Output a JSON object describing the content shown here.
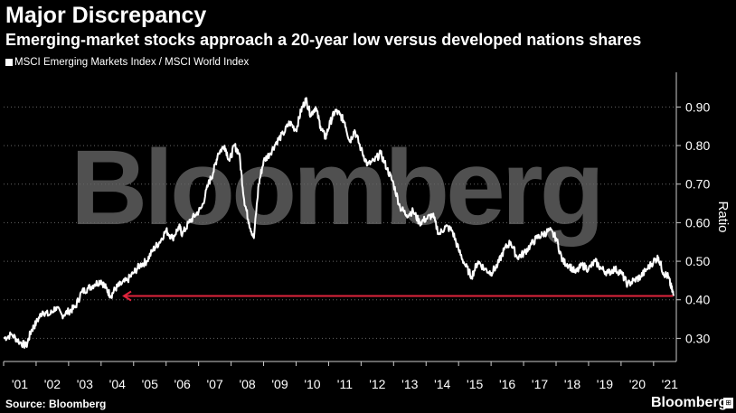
{
  "header": {
    "title": "Major Discrepancy",
    "subtitle": "Emerging-market stocks approach a 20-year low versus developed nations shares"
  },
  "footer": {
    "source": "Source: Bloomberg",
    "brand": "Bloomberg"
  },
  "watermark": "Bloomberg",
  "colors": {
    "background": "#000000",
    "line": "#ffffff",
    "reference_line": "#e0243c",
    "watermark": "#5f5f5f"
  },
  "chart_data": {
    "type": "line",
    "title": "Major Discrepancy",
    "subtitle": "Emerging-market stocks approach a 20-year low versus developed nations shares",
    "ylabel": "Ratio",
    "xlabel": "",
    "ylim": [
      0.24,
      0.99
    ],
    "xlim": [
      2001.0,
      2021.7
    ],
    "yticks": [
      0.3,
      0.4,
      0.5,
      0.6,
      0.7,
      0.8,
      0.9
    ],
    "ytick_labels": [
      "0.30",
      "0.40",
      "0.50",
      "0.60",
      "0.70",
      "0.80",
      "0.90"
    ],
    "xtick_labels": [
      "'01",
      "'02",
      "'03",
      "'04",
      "'05",
      "'06",
      "'07",
      "'08",
      "'09",
      "'10",
      "'11",
      "'12",
      "'13",
      "'14",
      "'15",
      "'16",
      "'17",
      "'18",
      "'19",
      "'20",
      "'21"
    ],
    "grid": "horizontal dotted",
    "legend": "top-left",
    "series": [
      {
        "name": "MSCI Emerging Markets Index / MSCI World Index",
        "x": [
          2001.0,
          2001.25,
          2001.5,
          2001.7,
          2001.85,
          2002.0,
          2002.2,
          2002.4,
          2002.6,
          2002.8,
          2003.0,
          2003.2,
          2003.4,
          2003.6,
          2003.8,
          2004.0,
          2004.15,
          2004.3,
          2004.45,
          2004.6,
          2004.8,
          2005.0,
          2005.2,
          2005.4,
          2005.6,
          2005.8,
          2006.0,
          2006.2,
          2006.4,
          2006.5,
          2006.7,
          2006.9,
          2007.1,
          2007.3,
          2007.45,
          2007.6,
          2007.8,
          2007.95,
          2008.1,
          2008.25,
          2008.4,
          2008.55,
          2008.7,
          2008.85,
          2009.0,
          2009.2,
          2009.4,
          2009.6,
          2009.8,
          2010.0,
          2010.15,
          2010.3,
          2010.45,
          2010.6,
          2010.75,
          2010.9,
          2011.05,
          2011.2,
          2011.35,
          2011.5,
          2011.65,
          2011.8,
          2012.0,
          2012.2,
          2012.4,
          2012.6,
          2012.8,
          2013.0,
          2013.2,
          2013.4,
          2013.6,
          2013.8,
          2014.0,
          2014.2,
          2014.4,
          2014.6,
          2014.8,
          2015.0,
          2015.2,
          2015.4,
          2015.6,
          2015.8,
          2016.0,
          2016.2,
          2016.4,
          2016.6,
          2016.8,
          2017.0,
          2017.2,
          2017.4,
          2017.6,
          2017.8,
          2018.0,
          2018.2,
          2018.4,
          2018.6,
          2018.8,
          2019.0,
          2019.2,
          2019.4,
          2019.6,
          2019.8,
          2020.0,
          2020.2,
          2020.4,
          2020.6,
          2020.8,
          2021.0,
          2021.15,
          2021.3,
          2021.45,
          2021.55,
          2021.62
        ],
        "values": [
          0.3,
          0.31,
          0.29,
          0.28,
          0.32,
          0.34,
          0.37,
          0.36,
          0.38,
          0.36,
          0.37,
          0.38,
          0.42,
          0.43,
          0.44,
          0.45,
          0.43,
          0.41,
          0.43,
          0.44,
          0.45,
          0.47,
          0.49,
          0.5,
          0.53,
          0.55,
          0.58,
          0.56,
          0.59,
          0.57,
          0.6,
          0.62,
          0.64,
          0.7,
          0.73,
          0.78,
          0.8,
          0.76,
          0.8,
          0.78,
          0.66,
          0.6,
          0.56,
          0.7,
          0.76,
          0.78,
          0.81,
          0.83,
          0.86,
          0.84,
          0.89,
          0.92,
          0.88,
          0.9,
          0.85,
          0.82,
          0.86,
          0.89,
          0.88,
          0.86,
          0.81,
          0.84,
          0.79,
          0.75,
          0.76,
          0.78,
          0.74,
          0.7,
          0.64,
          0.62,
          0.63,
          0.6,
          0.61,
          0.62,
          0.57,
          0.59,
          0.58,
          0.53,
          0.49,
          0.46,
          0.5,
          0.48,
          0.47,
          0.49,
          0.53,
          0.55,
          0.51,
          0.52,
          0.54,
          0.56,
          0.57,
          0.58,
          0.56,
          0.5,
          0.49,
          0.47,
          0.49,
          0.48,
          0.5,
          0.48,
          0.47,
          0.48,
          0.47,
          0.44,
          0.45,
          0.46,
          0.48,
          0.5,
          0.51,
          0.47,
          0.46,
          0.43,
          0.41
        ]
      }
    ],
    "reference_line": {
      "y": 0.41,
      "x_start": 2004.7,
      "x_end": 2021.6,
      "style": "arrow pointing left"
    }
  }
}
